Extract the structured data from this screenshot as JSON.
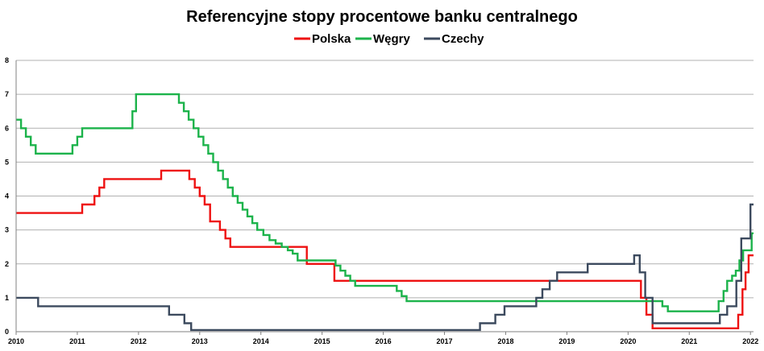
{
  "chart_data": {
    "type": "line",
    "title": "Referencyjne stopy procentowe banku centralnego",
    "xlabel": "",
    "ylabel": "",
    "xlim": [
      2010,
      2022.05
    ],
    "ylim": [
      0,
      8
    ],
    "x_ticks": [
      "2010",
      "2011",
      "2012",
      "2013",
      "2014",
      "2015",
      "2016",
      "2017",
      "2018",
      "2019",
      "2020",
      "2021",
      "2022"
    ],
    "y_ticks": [
      "0",
      "1",
      "2",
      "3",
      "4",
      "5",
      "6",
      "7",
      "8"
    ],
    "grid": true,
    "legend_position": "top",
    "step": true,
    "series": [
      {
        "name": "Polska",
        "color": "#ee1111",
        "x": [
          2010,
          2011.08,
          2011.28,
          2011.36,
          2011.44,
          2012.37,
          2012.83,
          2012.92,
          2013.0,
          2013.08,
          2013.17,
          2013.33,
          2013.42,
          2013.5,
          2014.75,
          2015.2,
          2020.21,
          2020.3,
          2020.4,
          2021.8,
          2021.87,
          2021.92,
          2021.97,
          2022.05
        ],
        "values": [
          3.5,
          3.75,
          4.0,
          4.25,
          4.5,
          4.75,
          4.5,
          4.25,
          4.0,
          3.75,
          3.25,
          3.0,
          2.75,
          2.5,
          2.0,
          1.5,
          1.0,
          0.5,
          0.1,
          0.5,
          1.25,
          1.75,
          2.25,
          2.25
        ]
      },
      {
        "name": "Węgry",
        "color": "#1cb34b",
        "x": [
          2010,
          2010.08,
          2010.16,
          2010.24,
          2010.32,
          2010.92,
          2011.0,
          2011.08,
          2011.9,
          2011.96,
          2012.66,
          2012.74,
          2012.82,
          2012.9,
          2012.98,
          2013.06,
          2013.14,
          2013.22,
          2013.3,
          2013.38,
          2013.46,
          2013.54,
          2013.62,
          2013.7,
          2013.78,
          2013.86,
          2013.94,
          2014.04,
          2014.14,
          2014.24,
          2014.34,
          2014.44,
          2014.52,
          2014.6,
          2015.22,
          2015.3,
          2015.38,
          2015.46,
          2015.54,
          2016.22,
          2016.3,
          2016.38,
          2020.56,
          2020.65,
          2021.48,
          2021.56,
          2021.62,
          2021.7,
          2021.76,
          2021.82,
          2021.88,
          2021.94,
          2022.02,
          2022.05
        ],
        "values": [
          6.25,
          6.0,
          5.75,
          5.5,
          5.25,
          5.5,
          5.75,
          6.0,
          6.5,
          7.0,
          6.75,
          6.5,
          6.25,
          6.0,
          5.75,
          5.5,
          5.25,
          5.0,
          4.75,
          4.5,
          4.25,
          4.0,
          3.8,
          3.6,
          3.4,
          3.2,
          3.0,
          2.85,
          2.7,
          2.6,
          2.5,
          2.4,
          2.3,
          2.1,
          1.95,
          1.8,
          1.65,
          1.5,
          1.35,
          1.2,
          1.05,
          0.9,
          0.75,
          0.6,
          0.9,
          1.2,
          1.5,
          1.65,
          1.8,
          2.1,
          2.4,
          2.4,
          2.9,
          2.9
        ]
      },
      {
        "name": "Czechy",
        "color": "#3c4a5e",
        "x": [
          2010,
          2010.36,
          2012.5,
          2012.75,
          2012.86,
          2017.58,
          2017.83,
          2017.98,
          2018.1,
          2018.5,
          2018.6,
          2018.72,
          2018.84,
          2019.34,
          2020.1,
          2020.19,
          2020.28,
          2020.4,
          2021.5,
          2021.62,
          2021.77,
          2021.85,
          2021.88,
          2022.0,
          2022.05
        ],
        "values": [
          1.0,
          0.75,
          0.5,
          0.25,
          0.05,
          0.25,
          0.5,
          0.75,
          0.75,
          1.0,
          1.25,
          1.5,
          1.75,
          2.0,
          2.25,
          1.75,
          1.0,
          0.25,
          0.5,
          0.75,
          1.5,
          2.75,
          2.75,
          3.75,
          3.75
        ]
      }
    ]
  }
}
